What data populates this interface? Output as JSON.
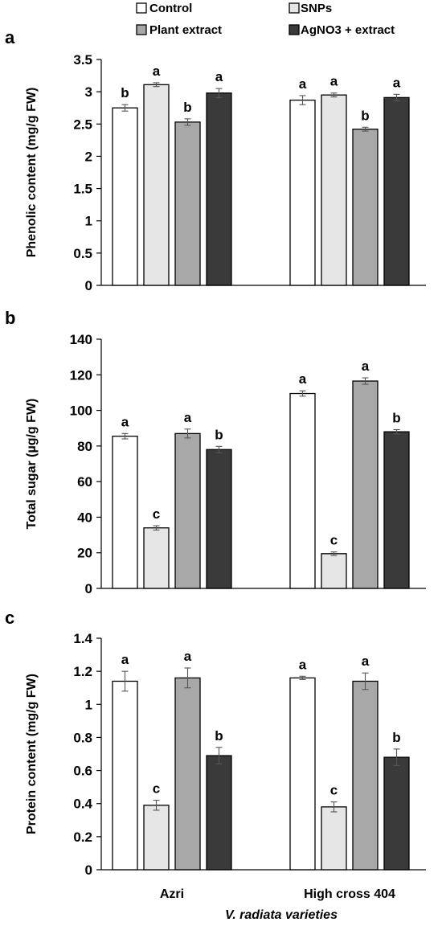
{
  "legend": [
    {
      "label": "Control",
      "color": "#ffffff"
    },
    {
      "label": "SNPs",
      "color": "#e6e6e6"
    },
    {
      "label": "Plant extract",
      "color": "#a8a8a8"
    },
    {
      "label": "AgNO3 + extract",
      "color": "#3a3a3a"
    }
  ],
  "x_title": {
    "italic": "V. radiata",
    "rest": " varieties"
  },
  "chart_data": [
    {
      "type": "bar",
      "panel": "a",
      "ylabel": "Phenolic content (mg/g FW)",
      "ylim": [
        0,
        3.5
      ],
      "ytick_step": 0.5,
      "ytick_labels": [
        "0",
        "0.5",
        "1",
        "1.5",
        "2",
        "2.5",
        "3",
        "3.5"
      ],
      "categories": [
        "Azri",
        "High cross 404"
      ],
      "series": [
        {
          "name": "Control",
          "values": [
            2.75,
            2.87
          ],
          "errors": [
            0.05,
            0.07
          ],
          "letters": [
            "b",
            "a"
          ]
        },
        {
          "name": "SNPs",
          "values": [
            3.11,
            2.95
          ],
          "errors": [
            0.03,
            0.03
          ],
          "letters": [
            "a",
            "a"
          ]
        },
        {
          "name": "Plant extract",
          "values": [
            2.53,
            2.42
          ],
          "errors": [
            0.05,
            0.03
          ],
          "letters": [
            "b",
            "b"
          ]
        },
        {
          "name": "AgNO3 + extract",
          "values": [
            2.98,
            2.91
          ],
          "errors": [
            0.07,
            0.05
          ],
          "letters": [
            "a",
            "a"
          ]
        }
      ],
      "show_category_labels": false
    },
    {
      "type": "bar",
      "panel": "b",
      "ylabel": "Total sugar (µg/g FW)",
      "ylim": [
        0,
        140
      ],
      "ytick_step": 20,
      "ytick_labels": [
        "0",
        "20",
        "40",
        "60",
        "80",
        "100",
        "120",
        "140"
      ],
      "categories": [
        "Azri",
        "High cross 404"
      ],
      "series": [
        {
          "name": "Control",
          "values": [
            85.5,
            109.5
          ],
          "errors": [
            1.5,
            1.5
          ],
          "letters": [
            "a",
            "a"
          ]
        },
        {
          "name": "SNPs",
          "values": [
            34.0,
            19.5
          ],
          "errors": [
            1.2,
            1.0
          ],
          "letters": [
            "c",
            "c"
          ]
        },
        {
          "name": "Plant extract",
          "values": [
            87.0,
            116.5
          ],
          "errors": [
            2.5,
            1.8
          ],
          "letters": [
            "a",
            "a"
          ]
        },
        {
          "name": "AgNO3 + extract",
          "values": [
            78.0,
            88.0
          ],
          "errors": [
            1.8,
            1.2
          ],
          "letters": [
            "b",
            "b"
          ]
        }
      ],
      "show_category_labels": false
    },
    {
      "type": "bar",
      "panel": "c",
      "ylabel": "Protein content (mg/g FW)",
      "ylim": [
        0,
        1.4
      ],
      "ytick_step": 0.2,
      "ytick_labels": [
        "0",
        "0.2",
        "0.4",
        "0.6",
        "0.8",
        "1",
        "1.2",
        "1.4"
      ],
      "categories": [
        "Azri",
        "High cross 404"
      ],
      "series": [
        {
          "name": "Control",
          "values": [
            1.14,
            1.16
          ],
          "errors": [
            0.06,
            0.01
          ],
          "letters": [
            "a",
            "a"
          ]
        },
        {
          "name": "SNPs",
          "values": [
            0.39,
            0.38
          ],
          "errors": [
            0.03,
            0.03
          ],
          "letters": [
            "c",
            "c"
          ]
        },
        {
          "name": "Plant extract",
          "values": [
            1.16,
            1.14
          ],
          "errors": [
            0.06,
            0.05
          ],
          "letters": [
            "a",
            "a"
          ]
        },
        {
          "name": "AgNO3 + extract",
          "values": [
            0.69,
            0.68
          ],
          "errors": [
            0.05,
            0.05
          ],
          "letters": [
            "b",
            "b"
          ]
        }
      ],
      "show_category_labels": true
    }
  ]
}
